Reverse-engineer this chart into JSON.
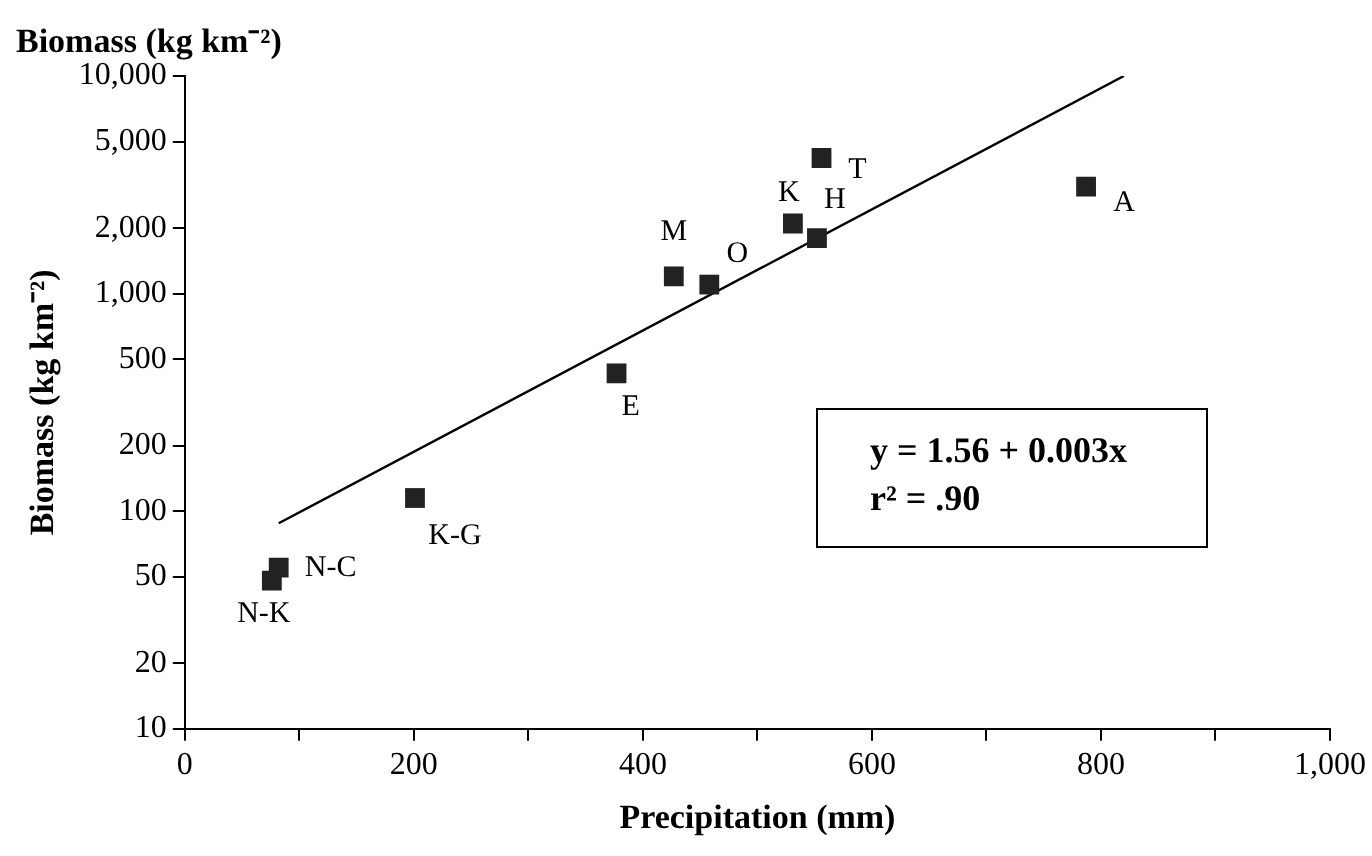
{
  "chart_data": {
    "type": "scatter",
    "title": "Biomass (kg km⁻²)",
    "xlabel": "Precipitation (mm)",
    "ylabel": "Biomass (kg km⁻²)",
    "series": [
      {
        "type": "scatter",
        "color": "#222222",
        "marker": "square",
        "x": [
          76,
          82,
          201,
          377,
          427,
          458,
          531,
          552,
          556,
          787
        ],
        "values": [
          48,
          55,
          115,
          430,
          1200,
          1100,
          2100,
          1800,
          4200,
          3100
        ]
      },
      {
        "type": "line",
        "color": "#000000",
        "marker": "none",
        "x": [
          82,
          820
        ],
        "values": [
          88,
          10000
        ]
      }
    ],
    "annotations": [
      {
        "text": "N-K",
        "x": 76,
        "y": 48
      },
      {
        "text": "N-C",
        "x": 82,
        "y": 55
      },
      {
        "text": "K-G",
        "x": 201,
        "y": 115
      },
      {
        "text": "E",
        "x": 377,
        "y": 430
      },
      {
        "text": "M",
        "x": 427,
        "y": 1200
      },
      {
        "text": "O",
        "x": 458,
        "y": 1100
      },
      {
        "text": "K",
        "x": 531,
        "y": 2100
      },
      {
        "text": "H",
        "x": 552,
        "y": 1800
      },
      {
        "text": "T",
        "x": 556,
        "y": 4200
      },
      {
        "text": "A",
        "x": 787,
        "y": 3100
      },
      "y = 1.56 + 0.003x",
      "r² =   .90"
    ],
    "log": "y",
    "grid": false,
    "legend": false,
    "xlim": [
      0,
      1000
    ],
    "xticks": [
      {
        "value": 0,
        "label": "0"
      },
      {
        "value": 100,
        "label": null
      },
      {
        "value": 200,
        "label": "200"
      },
      {
        "value": 300,
        "label": null
      },
      {
        "value": 400,
        "label": "400"
      },
      {
        "value": 500,
        "label": null
      },
      {
        "value": 600,
        "label": "600"
      },
      {
        "value": 700,
        "label": null
      },
      {
        "value": 800,
        "label": "800"
      },
      {
        "value": 900,
        "label": null
      },
      {
        "value": 1000,
        "label": "1,000"
      }
    ],
    "ylim": [
      10,
      10000
    ],
    "yticks": [
      {
        "value": 10,
        "label": "10"
      },
      {
        "value": 20,
        "label": "20"
      },
      {
        "value": 50,
        "label": "50"
      },
      {
        "value": 100,
        "label": "100"
      },
      {
        "value": 200,
        "label": "200"
      },
      {
        "value": 500,
        "label": "500"
      },
      {
        "value": 1000,
        "label": "1,000"
      },
      {
        "value": 2000,
        "label": "2,000"
      },
      {
        "value": 5000,
        "label": "5,000"
      },
      {
        "value": 10000,
        "label": "10,000"
      }
    ]
  }
}
